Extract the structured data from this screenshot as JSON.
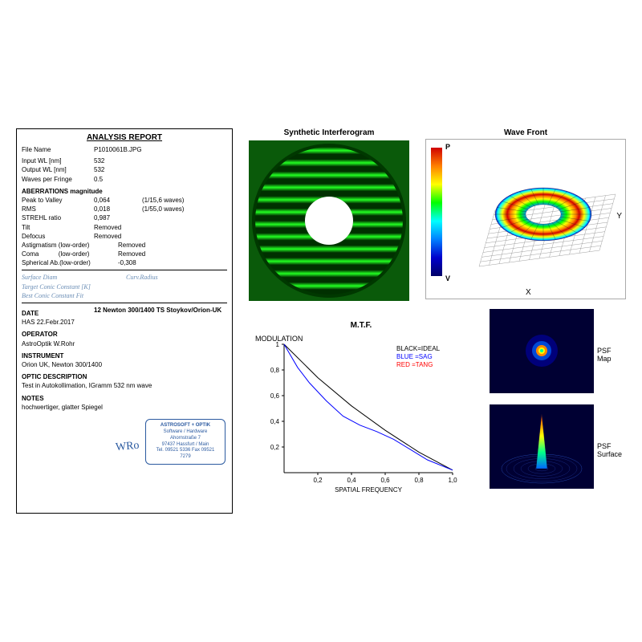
{
  "report": {
    "title": "ANALYSIS REPORT",
    "file_label": "File Name",
    "file_val": "P1010061B.JPG",
    "input_wl_label": "Input WL [nm]",
    "input_wl": "532",
    "output_wl_label": "Output WL [nm]",
    "output_wl": "532",
    "wpf_label": "Waves per Fringe",
    "wpf": "0.5",
    "ab_head": "ABERRATIONS magnitude",
    "ptv_label": "Peak to Valley",
    "ptv": "0,064",
    "ptv2": "(1/15,6 waves)",
    "rms_label": "RMS",
    "rms": "0,018",
    "rms2": "(1/55,0 waves)",
    "strehl_label": "STREHL ratio",
    "strehl": "0,987",
    "tilt_label": "Tilt",
    "tilt": "Removed",
    "defocus_label": "Defocus",
    "defocus": "Removed",
    "astig_label": "Astigmatism (low-order)",
    "astig": "Removed",
    "coma_label": "Coma           (low-order)",
    "coma": "Removed",
    "sph_label": "Spherical Ab.(low-order)",
    "sph": "-0,308",
    "surf_diam": "Surface Diam",
    "curv_rad": "Curv.Radius",
    "target_conic": "Target Conic Constant [K]",
    "best_conic": "Best Conic Constant Fit",
    "date_head": "DATE",
    "date_val": "HAS 22.Febr.2017",
    "newton_line": "12 Newton  300/1400    TS Stoykov/Orion-UK",
    "op_head": "OPERATOR",
    "op_val": "AstroOptik W.Rohr",
    "inst_head": "INSTRUMENT",
    "inst_val": "Orion UK, Newton 300/1400",
    "optic_head": "OPTIC DESCRIPTION",
    "optic_val": "Test in Autokollimation, IGramm 532 nm wave",
    "notes_head": "NOTES",
    "notes_val": "hochwertiger, glatter Spiegel",
    "stamp": {
      "l1": "ASTROSOFT + OPTIK",
      "l2": "Software / Hardware",
      "l3": "Ahornstraße 7",
      "l4": "97437 Hassfurt / Main",
      "l5": "Tel. 09521 5336 Fax 09521 7279"
    },
    "signature": "WRo"
  },
  "interferogram": {
    "title": "Synthetic Interferogram",
    "bg_color": "#0a5a0a",
    "ring_bg": "#003800",
    "fringe_bright": "#22ff22",
    "fringe_dark": "#003000",
    "outer_r": 92,
    "inner_r": 30,
    "fringe_count": 12
  },
  "wavefront": {
    "title": "Wave Front",
    "p_label": "P",
    "v_label": "V",
    "x_label": "X",
    "y_label": "Y",
    "colorbar": [
      "#d00000",
      "#ff7f00",
      "#ffff00",
      "#00ff00",
      "#00ffff",
      "#0080ff",
      "#0000cc",
      "#000066"
    ],
    "grid_color": "#888888",
    "outer_r": 60,
    "inner_r": 22
  },
  "mtf": {
    "title": "M.T.F.",
    "ylabel": "MODULATION",
    "xlabel": "SPATIAL FREQUENCY",
    "legend": {
      "ideal": "BLACK=IDEAL",
      "sag": "BLUE  =SAG",
      "tang": "RED   =TANG"
    },
    "legend_colors": {
      "ideal": "#000000",
      "sag": "#0000ff",
      "tang": "#ff0000"
    },
    "yticks": [
      "1",
      "0,8",
      "0,6",
      "0,4",
      "0,2"
    ],
    "xticks": [
      "0,2",
      "0,4",
      "0,6",
      "0,8",
      "1,0"
    ],
    "xlim": [
      0,
      1
    ],
    "ylim": [
      0,
      1
    ],
    "ideal_curve": [
      [
        0,
        1
      ],
      [
        0.2,
        0.74
      ],
      [
        0.4,
        0.52
      ],
      [
        0.6,
        0.33
      ],
      [
        0.8,
        0.16
      ],
      [
        1.0,
        0.02
      ]
    ],
    "sag_curve": [
      [
        0,
        1
      ],
      [
        0.08,
        0.82
      ],
      [
        0.15,
        0.7
      ],
      [
        0.25,
        0.56
      ],
      [
        0.35,
        0.44
      ],
      [
        0.45,
        0.37
      ],
      [
        0.55,
        0.32
      ],
      [
        0.65,
        0.26
      ],
      [
        0.75,
        0.18
      ],
      [
        0.85,
        0.1
      ],
      [
        1.0,
        0.02
      ]
    ],
    "axis_color": "#000000",
    "grid_color": "#cccccc"
  },
  "psf": {
    "map_label": "PSF Map",
    "surf_label": "PSF Surface",
    "bg": "#000033",
    "center_colors": [
      "#00ff88",
      "#ffff00",
      "#ff8800",
      "#0066ff",
      "#0000aa"
    ]
  }
}
